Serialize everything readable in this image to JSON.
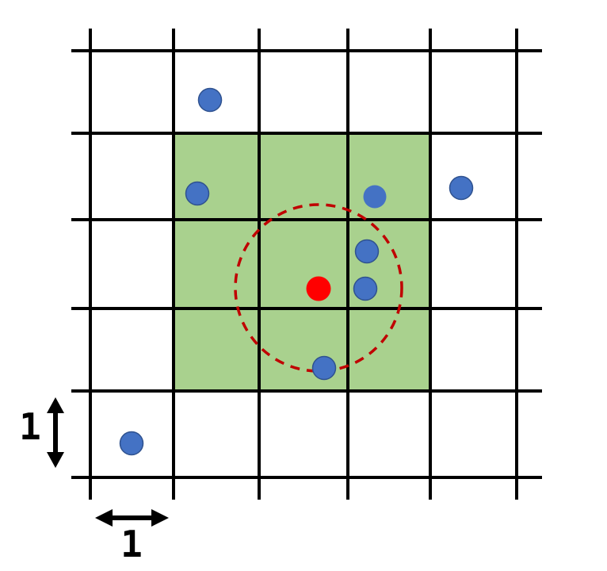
{
  "colors": {
    "grid": "#000000",
    "highlight": "#a9d18e",
    "point": "#4472c4",
    "point_stroke": "#2f528f",
    "query": "#ff0000",
    "radius_circle": "#c00000"
  },
  "labels": {
    "unit_vertical": "1",
    "unit_horizontal": "1"
  }
}
